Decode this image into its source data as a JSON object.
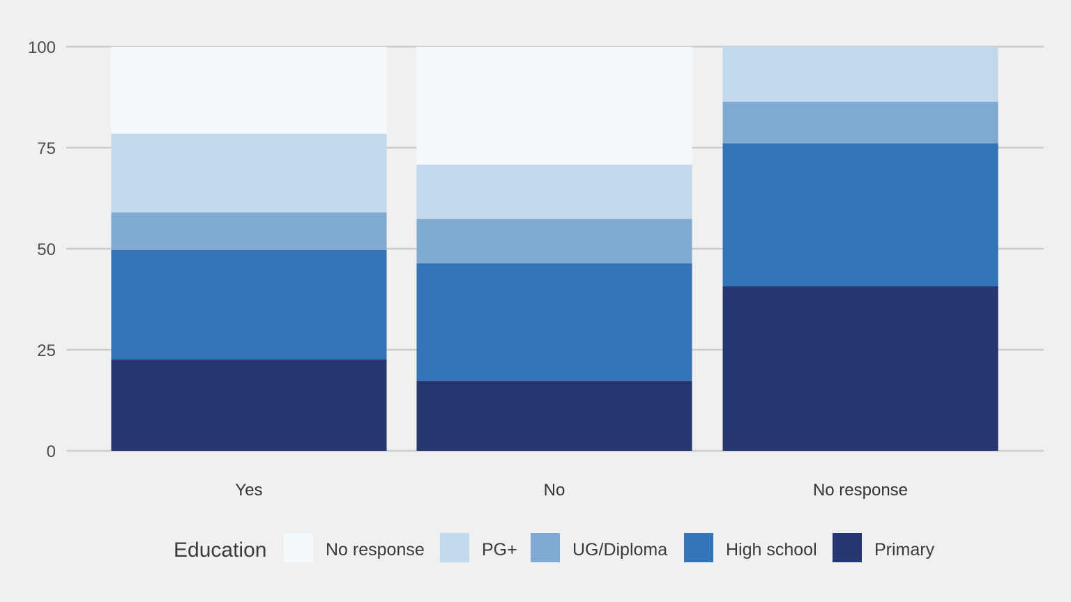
{
  "chart_data": {
    "type": "bar",
    "stacked": true,
    "categories": [
      "Yes",
      "No",
      "No response"
    ],
    "series": [
      {
        "name": "Primary",
        "color": "#263671",
        "values": [
          22.6,
          17.3,
          40.7
        ]
      },
      {
        "name": "High school",
        "color": "#3373b7",
        "values": [
          27.1,
          29.1,
          35.4
        ]
      },
      {
        "name": "UG/Diploma",
        "color": "#80aad2",
        "values": [
          9.3,
          11.0,
          10.3
        ]
      },
      {
        "name": "PG+",
        "color": "#c2d8ec",
        "values": [
          19.5,
          13.4,
          13.6
        ]
      },
      {
        "name": "No response",
        "color": "#f4f9fe",
        "values": [
          21.5,
          29.2,
          0
        ]
      }
    ],
    "ylim": [
      0,
      100
    ],
    "yticks": [
      "0",
      "25",
      "50",
      "75",
      "100"
    ],
    "ytick_values": [
      0,
      25,
      50,
      75,
      100
    ],
    "legend": {
      "title": "Education",
      "position": "bottom",
      "order": [
        "No response",
        "PG+",
        "UG/Diploma",
        "High school",
        "Primary"
      ]
    },
    "grid": "horizontal",
    "background_color": "#f0f0f0",
    "grid_color": "#cccccc"
  }
}
